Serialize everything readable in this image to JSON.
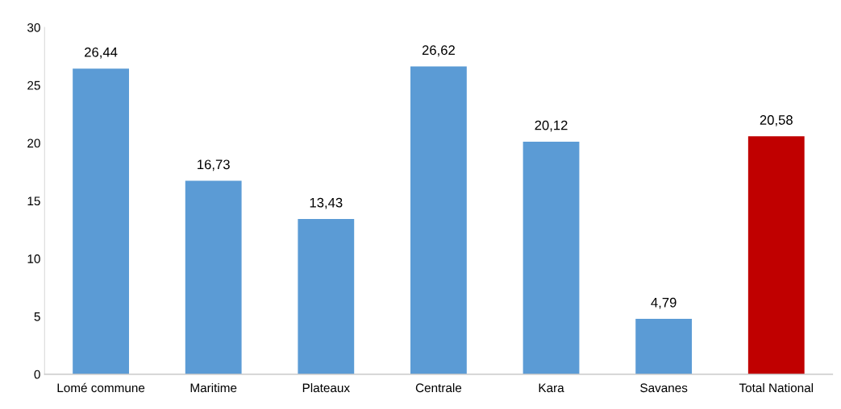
{
  "chart_data": {
    "type": "bar",
    "categories": [
      "Lomé commune",
      "Maritime",
      "Plateaux",
      "Centrale",
      "Kara",
      "Savanes",
      "Total National"
    ],
    "values": [
      26.44,
      16.73,
      13.43,
      26.62,
      20.12,
      4.79,
      20.58
    ],
    "value_labels": [
      "26,44",
      "16,73",
      "13,43",
      "26,62",
      "20,12",
      "4,79",
      "20,58"
    ],
    "colors": [
      "#5b9bd5",
      "#5b9bd5",
      "#5b9bd5",
      "#5b9bd5",
      "#5b9bd5",
      "#5b9bd5",
      "#c00000"
    ],
    "ylim": [
      0,
      30
    ],
    "yticks": [
      0,
      5,
      10,
      15,
      20,
      25,
      30
    ],
    "grid": false,
    "legend": false
  }
}
